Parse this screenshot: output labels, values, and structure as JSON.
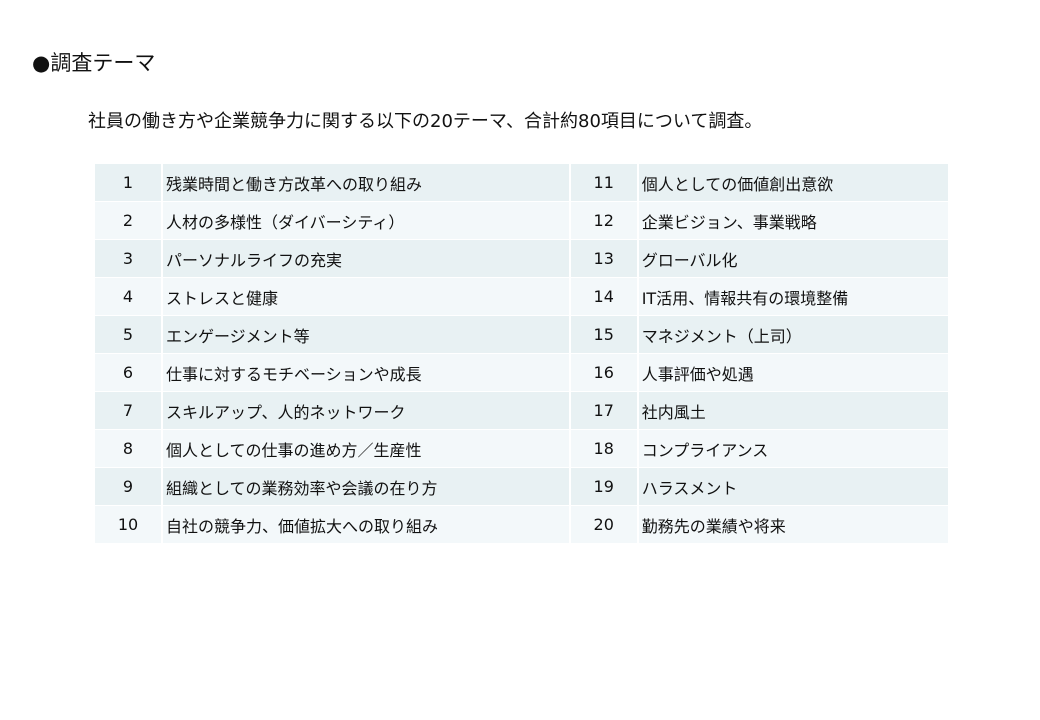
{
  "title": "●調査テーマ",
  "subtitle": "社員の働き方や企業競争力に関する以下の20テーマ、合計約80項目について調査。",
  "themes": [
    {
      "no": "1",
      "label": "残業時間と働き方改革への取り組み"
    },
    {
      "no": "2",
      "label": "人材の多様性（ダイバーシティ）"
    },
    {
      "no": "3",
      "label": "パーソナルライフの充実"
    },
    {
      "no": "4",
      "label": "ストレスと健康"
    },
    {
      "no": "5",
      "label": "エンゲージメント等"
    },
    {
      "no": "6",
      "label": "仕事に対するモチベーションや成長"
    },
    {
      "no": "7",
      "label": "スキルアップ、人的ネットワーク"
    },
    {
      "no": "8",
      "label": "個人としての仕事の進め方／生産性"
    },
    {
      "no": "9",
      "label": "組織としての業務効率や会議の在り方"
    },
    {
      "no": "10",
      "label": "自社の競争力、価値拡大への取り組み"
    },
    {
      "no": "11",
      "label": "個人としての価値創出意欲"
    },
    {
      "no": "12",
      "label": "企業ビジョン、事業戦略"
    },
    {
      "no": "13",
      "label": "グローバル化"
    },
    {
      "no": "14",
      "label": "IT活用、情報共有の環境整備"
    },
    {
      "no": "15",
      "label": "マネジメント（上司）"
    },
    {
      "no": "16",
      "label": "人事評価や処遇"
    },
    {
      "no": "17",
      "label": "社内風土"
    },
    {
      "no": "18",
      "label": "コンプライアンス"
    },
    {
      "no": "19",
      "label": "ハラスメント"
    },
    {
      "no": "20",
      "label": "勤務先の業績や将来"
    }
  ]
}
